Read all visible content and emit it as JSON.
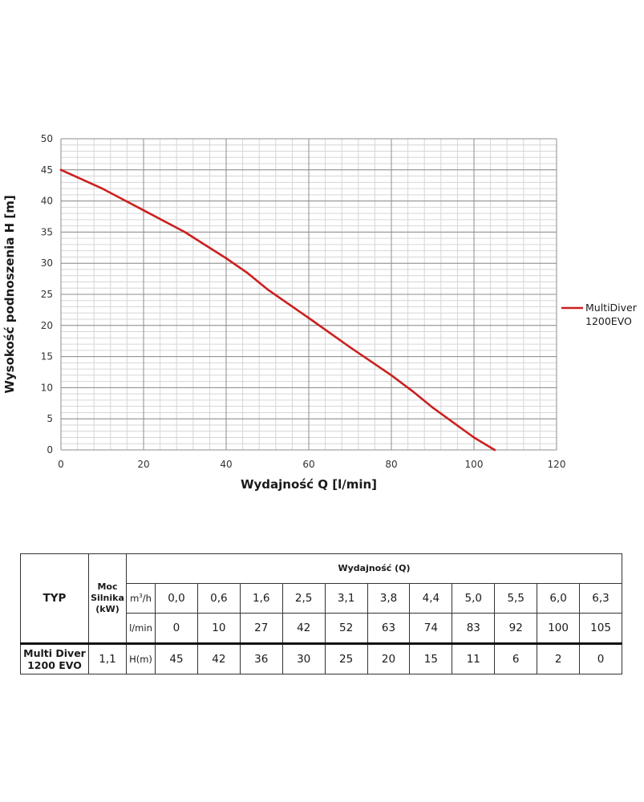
{
  "chart_data": {
    "type": "line",
    "xlabel": "Wydajność Q [l/min]",
    "ylabel": "Wysokość podnoszenia H [m]",
    "xlim": [
      0,
      120
    ],
    "ylim": [
      0,
      50
    ],
    "x_ticks": [
      0,
      20,
      40,
      60,
      80,
      100,
      120
    ],
    "y_ticks": [
      0,
      5,
      10,
      15,
      20,
      25,
      30,
      35,
      40,
      45,
      50
    ],
    "grid": true,
    "legend_position": "right",
    "series": [
      {
        "name": "MultiDiver 1200EVO",
        "name_lines": [
          "MultiDiver",
          "1200EVO"
        ],
        "color": "#cc1f1f",
        "x": [
          0,
          10,
          20,
          30,
          40,
          45,
          50,
          60,
          70,
          80,
          85,
          90,
          100,
          105
        ],
        "y": [
          45,
          42,
          38.5,
          35,
          30.8,
          28.5,
          25.8,
          21.2,
          16.5,
          12,
          9.5,
          6.8,
          2,
          0
        ]
      }
    ]
  },
  "table": {
    "typ_label": "TYP",
    "power_header": [
      "Moc",
      "Silnika",
      "(kW)"
    ],
    "flow_header": "Wydajność (Q)",
    "unit_m3h_base": "m",
    "unit_m3h_sup": "3",
    "unit_m3h_rest": "/h",
    "unit_lmin": "l/min",
    "unit_h": "H(m)",
    "m3h_values": [
      "0,0",
      "0,6",
      "1,6",
      "2,5",
      "3,1",
      "3,8",
      "4,4",
      "5,0",
      "5,5",
      "6,0",
      "6,3"
    ],
    "lmin_values": [
      "0",
      "10",
      "27",
      "42",
      "52",
      "63",
      "74",
      "83",
      "92",
      "100",
      "105"
    ],
    "row": {
      "name_lines": [
        "Multi Diver",
        "1200 EVO"
      ],
      "power": "1,1",
      "h_values": [
        "45",
        "42",
        "36",
        "30",
        "25",
        "20",
        "15",
        "11",
        "6",
        "2",
        "0"
      ]
    }
  }
}
